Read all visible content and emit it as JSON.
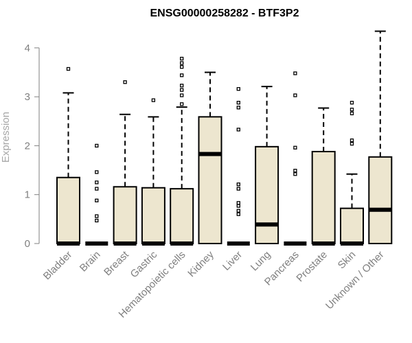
{
  "chart_data": {
    "type": "box",
    "title": "ENSG00000258282 - BTF3P2",
    "ylabel": "Expression",
    "xlabel": "",
    "ylim": [
      0,
      4.4
    ],
    "yticks": [
      0,
      1,
      2,
      3,
      4
    ],
    "grid": false,
    "colors": {
      "box_fill": "#ede6cf",
      "box_stroke": "#000000",
      "axis": "#7f7f7f"
    },
    "categories": [
      "Bladder",
      "Brain",
      "Breast",
      "Gastric",
      "Hematopoietic cells",
      "Kidney",
      "Liver",
      "Lung",
      "Pancreas",
      "Prostate",
      "Skin",
      "Unknown / Other"
    ],
    "boxes": [
      {
        "category": "Bladder",
        "whisker_low": 0,
        "q1": 0,
        "median": 0,
        "q3": 1.35,
        "whisker_high": 3.08,
        "outliers": [
          3.57
        ]
      },
      {
        "category": "Brain",
        "whisker_low": 0,
        "q1": 0,
        "median": 0,
        "q3": 0,
        "whisker_high": 0,
        "outliers": [
          0.47,
          0.56,
          0.88,
          1.12,
          1.25,
          1.46,
          2.0
        ]
      },
      {
        "category": "Breast",
        "whisker_low": 0,
        "q1": 0,
        "median": 0,
        "q3": 1.16,
        "whisker_high": 2.64,
        "outliers": [
          3.3
        ]
      },
      {
        "category": "Gastric",
        "whisker_low": 0,
        "q1": 0,
        "median": 0,
        "q3": 1.14,
        "whisker_high": 2.59,
        "outliers": [
          2.93
        ]
      },
      {
        "category": "Hematopoietic cells",
        "whisker_low": 0,
        "q1": 0,
        "median": 0,
        "q3": 1.12,
        "whisker_high": 2.79,
        "outliers": [
          2.85,
          3.03,
          3.14,
          3.23,
          3.44,
          3.61,
          3.69,
          3.78
        ]
      },
      {
        "category": "Kidney",
        "whisker_low": 0,
        "q1": 0,
        "median": 1.83,
        "q3": 2.59,
        "whisker_high": 3.5,
        "outliers": []
      },
      {
        "category": "Liver",
        "whisker_low": 0,
        "q1": 0,
        "median": 0,
        "q3": 0,
        "whisker_high": 0,
        "outliers": [
          0.6,
          0.67,
          0.77,
          0.83,
          1.12,
          1.21,
          2.33,
          2.78,
          2.88,
          3.16
        ]
      },
      {
        "category": "Lung",
        "whisker_low": 0,
        "q1": 0,
        "median": 0.39,
        "q3": 1.98,
        "whisker_high": 3.21,
        "outliers": []
      },
      {
        "category": "Pancreas",
        "whisker_low": 0,
        "q1": 0,
        "median": 0,
        "q3": 0,
        "whisker_high": 0,
        "outliers": [
          1.42,
          1.49,
          1.96,
          3.03,
          3.48
        ]
      },
      {
        "category": "Prostate",
        "whisker_low": 0,
        "q1": 0,
        "median": 0,
        "q3": 1.88,
        "whisker_high": 2.77,
        "outliers": []
      },
      {
        "category": "Skin",
        "whisker_low": 0,
        "q1": 0,
        "median": 0,
        "q3": 0.72,
        "whisker_high": 1.42,
        "outliers": [
          2.04,
          2.11,
          2.66,
          2.74,
          2.88
        ]
      },
      {
        "category": "Unknown / Other",
        "whisker_low": 0,
        "q1": 0,
        "median": 0.69,
        "q3": 1.77,
        "whisker_high": 4.34,
        "outliers": []
      }
    ]
  }
}
